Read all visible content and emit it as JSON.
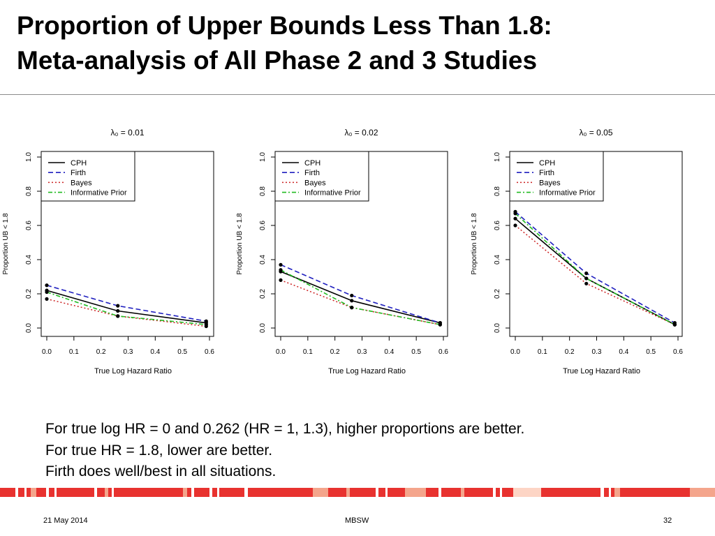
{
  "slide": {
    "title_line1": "Proportion of Upper Bounds Less Than 1.8:",
    "title_line2": "Meta-analysis of All Phase 2 and 3 Studies"
  },
  "notes": [
    "For true log HR = 0 and 0.262 (HR = 1, 1.3), higher proportions are better.",
    "For true HR = 1.8, lower are better.",
    "Firth does well/best in all situations."
  ],
  "footer": {
    "date": "21 May 2014",
    "center": "MBSW",
    "page": "32"
  },
  "colors": {
    "accent": "#e8322f",
    "stripe_light": "#f4a58c",
    "CPH": "#000000",
    "Firth": "#1f1fbf",
    "Bayes": "#cc2222",
    "Informative Prior": "#22bb22"
  },
  "chart_data": [
    {
      "type": "line",
      "title": "λ₀ = 0.01",
      "xlabel": "True Log Hazard Ratio",
      "ylabel": "Proportion UB < 1.8",
      "xlim": [
        0,
        0.6
      ],
      "ylim": [
        0,
        1.0
      ],
      "xticks": [
        "0.0",
        "0.1",
        "0.2",
        "0.3",
        "0.4",
        "0.5",
        "0.6"
      ],
      "yticks": [
        "0.0",
        "0.2",
        "0.4",
        "0.6",
        "0.8",
        "1.0"
      ],
      "legend_position": "top-left",
      "x": [
        0,
        0.262,
        0.588
      ],
      "series": [
        {
          "name": "CPH",
          "values": [
            0.22,
            0.1,
            0.03
          ]
        },
        {
          "name": "Firth",
          "values": [
            0.25,
            0.13,
            0.04
          ]
        },
        {
          "name": "Bayes",
          "values": [
            0.17,
            0.07,
            0.01
          ]
        },
        {
          "name": "Informative Prior",
          "values": [
            0.21,
            0.07,
            0.02
          ]
        }
      ]
    },
    {
      "type": "line",
      "title": "λ₀ = 0.02",
      "xlabel": "True Log Hazard Ratio",
      "ylabel": "Proportion UB < 1.8",
      "xlim": [
        0,
        0.6
      ],
      "ylim": [
        0,
        1.0
      ],
      "xticks": [
        "0.0",
        "0.1",
        "0.2",
        "0.3",
        "0.4",
        "0.5",
        "0.6"
      ],
      "yticks": [
        "0.0",
        "0.2",
        "0.4",
        "0.6",
        "0.8",
        "1.0"
      ],
      "legend_position": "top-left",
      "x": [
        0,
        0.262,
        0.588
      ],
      "series": [
        {
          "name": "CPH",
          "values": [
            0.33,
            0.16,
            0.03
          ]
        },
        {
          "name": "Firth",
          "values": [
            0.37,
            0.19,
            0.03
          ]
        },
        {
          "name": "Bayes",
          "values": [
            0.28,
            0.12,
            0.02
          ]
        },
        {
          "name": "Informative Prior",
          "values": [
            0.34,
            0.12,
            0.02
          ]
        }
      ]
    },
    {
      "type": "line",
      "title": "λ₀ = 0.05",
      "xlabel": "True Log Hazard Ratio",
      "ylabel": "Proportion UB < 1.8",
      "xlim": [
        0,
        0.6
      ],
      "ylim": [
        0,
        1.0
      ],
      "xticks": [
        "0.0",
        "0.1",
        "0.2",
        "0.3",
        "0.4",
        "0.5",
        "0.6"
      ],
      "yticks": [
        "0.0",
        "0.2",
        "0.4",
        "0.6",
        "0.8",
        "1.0"
      ],
      "legend_position": "top-left",
      "x": [
        0,
        0.262,
        0.588
      ],
      "series": [
        {
          "name": "CPH",
          "values": [
            0.64,
            0.29,
            0.02
          ]
        },
        {
          "name": "Firth",
          "values": [
            0.68,
            0.32,
            0.03
          ]
        },
        {
          "name": "Bayes",
          "values": [
            0.6,
            0.26,
            0.02
          ]
        },
        {
          "name": "Informative Prior",
          "values": [
            0.67,
            0.29,
            0.02
          ]
        }
      ]
    }
  ]
}
